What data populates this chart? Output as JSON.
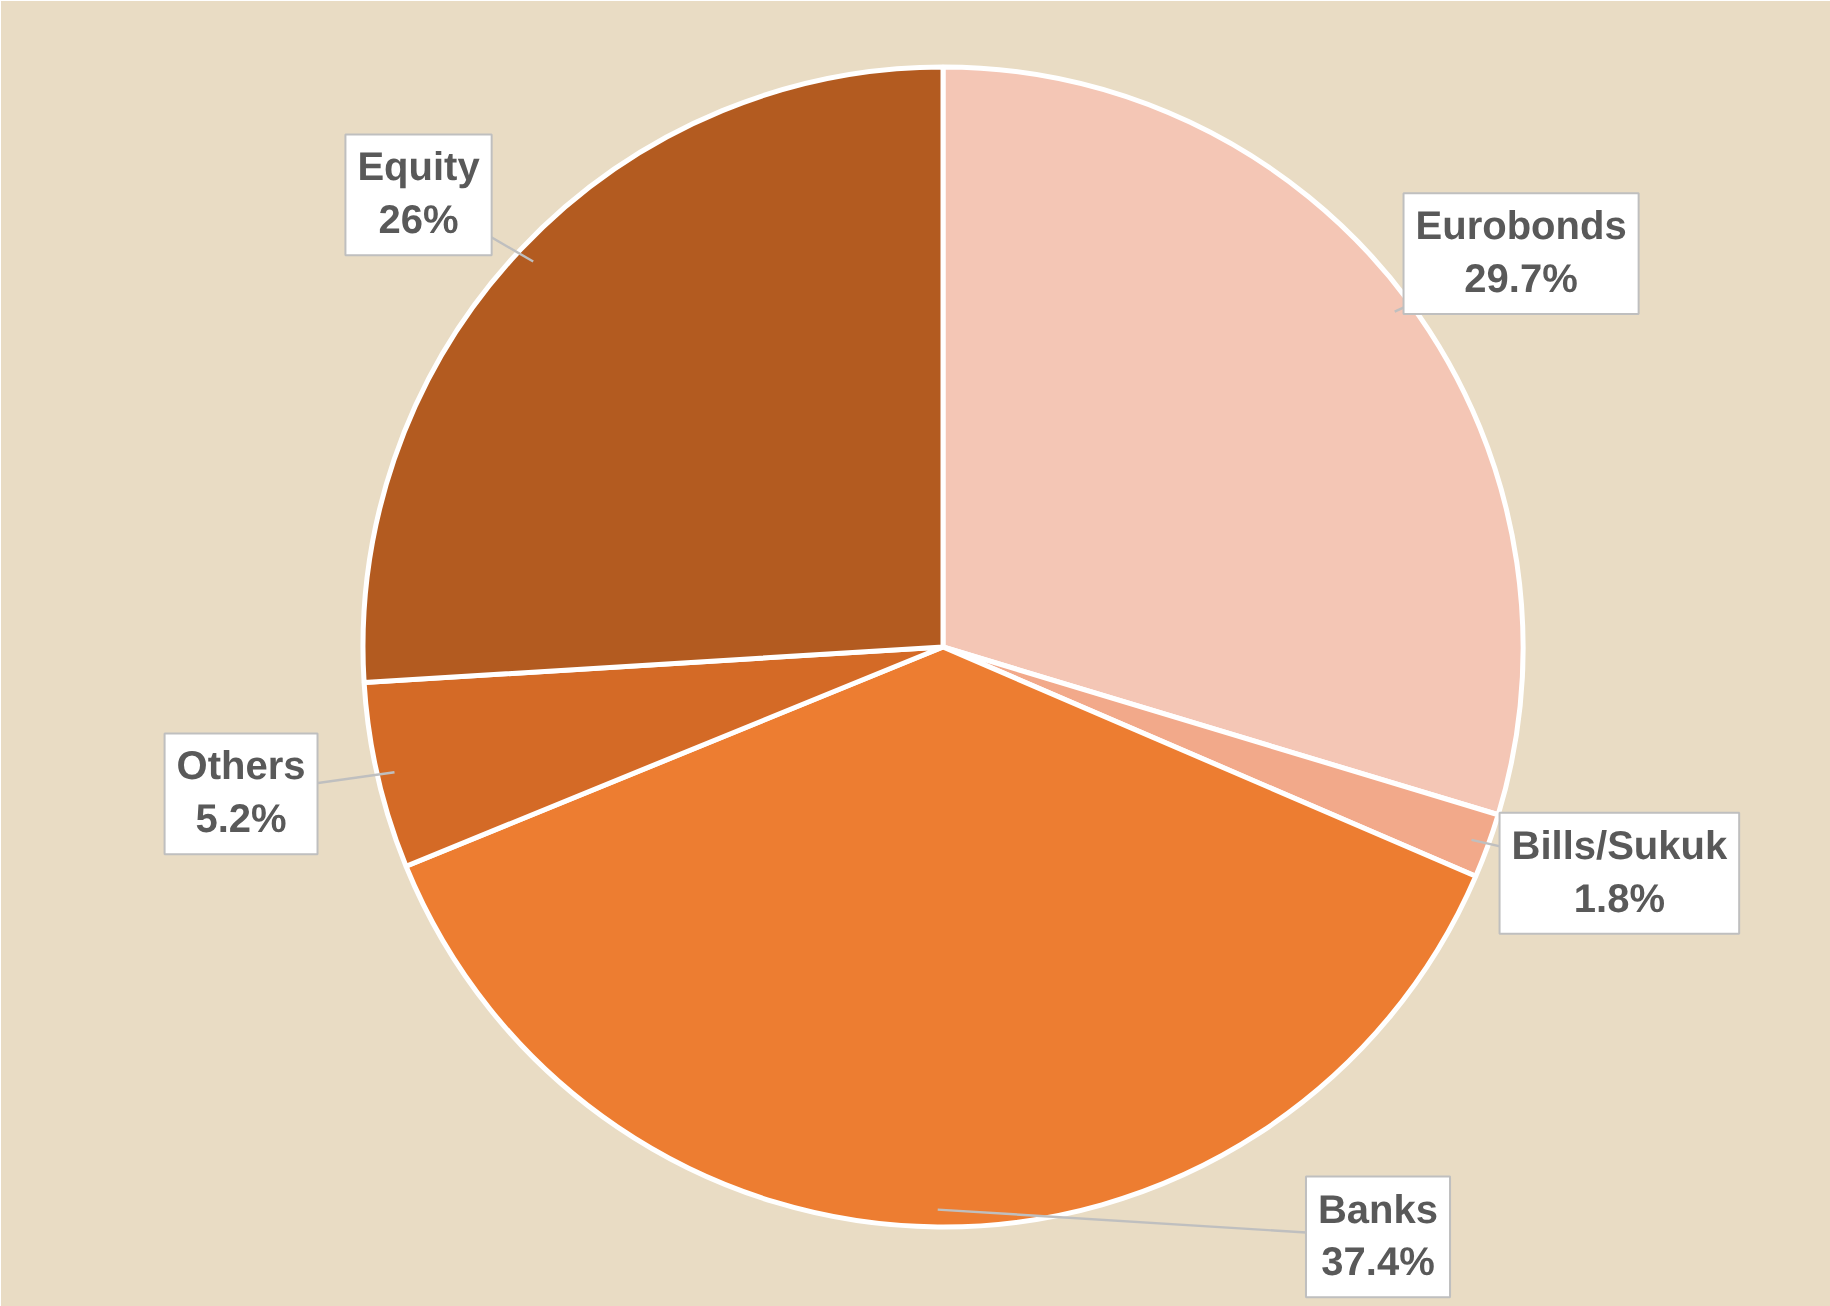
{
  "chart_data": {
    "type": "pie",
    "categories": [
      "Eurobonds",
      "Bills/Sukuk",
      "Banks",
      "Others",
      "Equity"
    ],
    "values": [
      29.7,
      1.8,
      37.4,
      5.2,
      26
    ],
    "value_labels": [
      "29.7%",
      "1.8%",
      "37.4%",
      "5.2%",
      "26%"
    ],
    "colors": [
      "#f4c6b5",
      "#f2a98a",
      "#ed7d31",
      "#d46a26",
      "#b35b20"
    ]
  }
}
